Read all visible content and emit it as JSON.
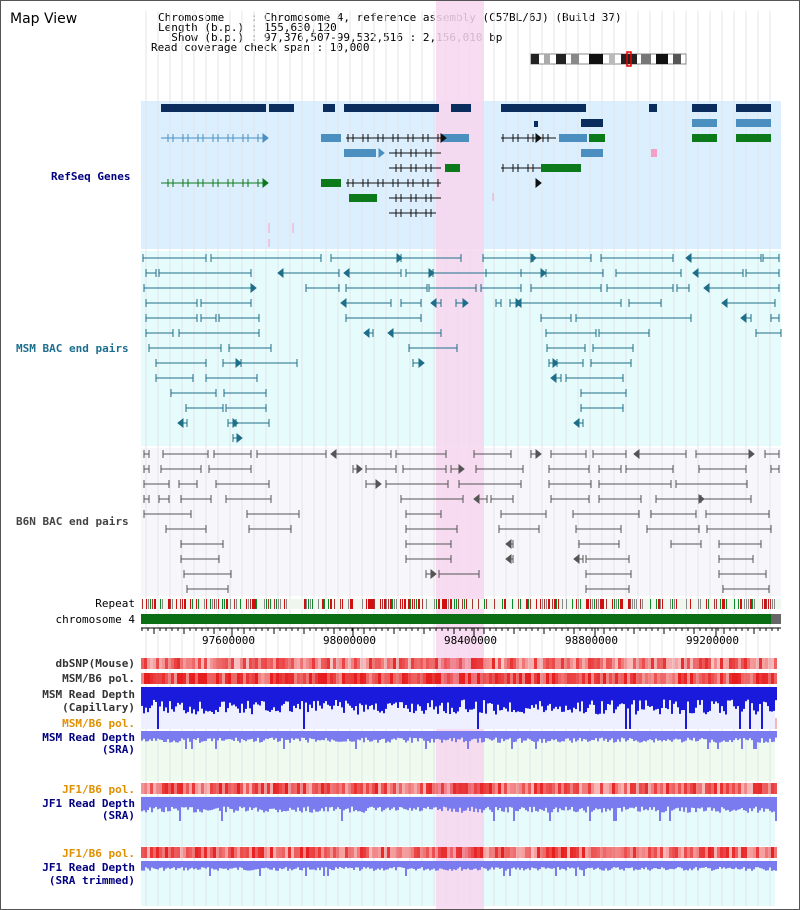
{
  "page": {
    "title": "Map View"
  },
  "info": {
    "line1": "Chromosome    : Chromosome 4, reference assembly (C57BL/6J) (Build 37)",
    "line2": "Length (b.p.) : 155,630,120",
    "line3": "  Show (b.p.) : 97,376,507-99,532,516 : 2,156,010 bp",
    "line4": "Read coverage check span : 10,000"
  },
  "tracks": {
    "refseq": "RefSeq Genes",
    "msm_bac": "MSM BAC end pairs",
    "b6n_bac": "B6N BAC end pairs",
    "repeat": "Repeat",
    "chromosome": "chromosome 4",
    "dbsnp": "dbSNP(Mouse)",
    "msm_b6_pol_1": "MSM/B6 pol.",
    "msm_read_depth_cap_1": "MSM Read Depth",
    "msm_read_depth_cap_2": "(Capillary)",
    "msm_b6_pol_2": "MSM/B6 pol.",
    "msm_read_depth_sra_1": "MSM Read Depth",
    "msm_read_depth_sra_2": "(SRA)",
    "jf1_b6_pol_1": "JF1/B6 pol.",
    "jf1_read_depth_sra_1": "JF1 Read Depth",
    "jf1_read_depth_sra_2": "(SRA)",
    "jf1_b6_pol_2": "JF1/B6 pol.",
    "jf1_read_depth_trim_1": "JF1 Read Depth",
    "jf1_read_depth_trim_2": "(SRA trimmed)"
  },
  "axis": {
    "ticks": [
      "97600000",
      "98000000",
      "98400000",
      "98800000",
      "99200000"
    ]
  },
  "colors": {
    "highlight": "#f7d6ef",
    "refseq_bg": "#dcefff",
    "msm_bg": "#e6fbfb",
    "b6n_bg": "#f7f7fb",
    "gene_dark": "#0b2d5e",
    "gene_mid": "#4a8fbf",
    "gene_green": "#0c7a1a",
    "bac_teal": "#1e6e8a",
    "bac_gray": "#555555",
    "chrom_green": "#0b6e14",
    "depth_blue": "#1a1adc",
    "depth_light": "#7b7bf0"
  }
}
